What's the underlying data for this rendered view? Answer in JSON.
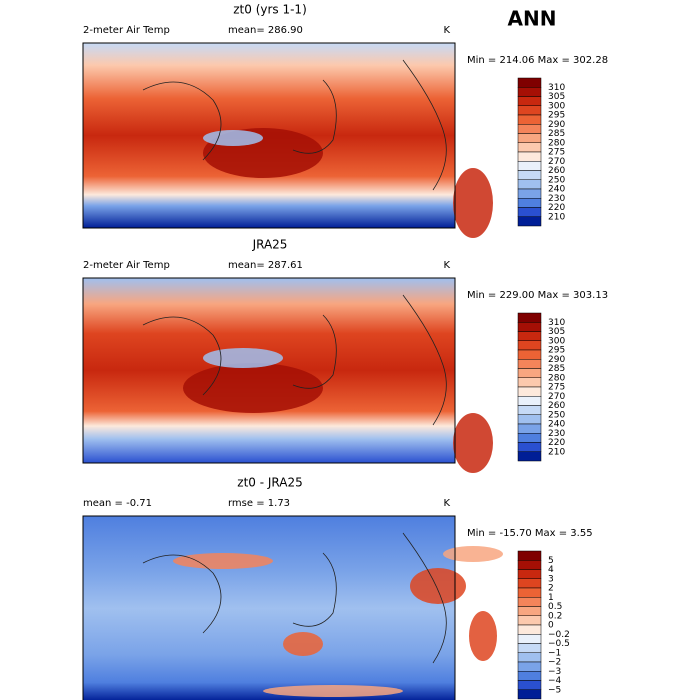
{
  "header": {
    "title": "ANN"
  },
  "panels": [
    {
      "title": "zt0 (yrs 1-1)",
      "variable": "2-meter Air Temp",
      "stat": "mean= 286.90",
      "units": "K",
      "range": "Min = 214.06 Max = 302.28",
      "colorbar": {
        "labels": [
          "310",
          "305",
          "300",
          "295",
          "290",
          "285",
          "280",
          "275",
          "270",
          "260",
          "250",
          "240",
          "230",
          "220",
          "210"
        ]
      }
    },
    {
      "title": "JRA25",
      "variable": "2-meter Air Temp",
      "stat": "mean= 287.61",
      "units": "K",
      "range": "Min = 229.00 Max = 303.13",
      "colorbar": {
        "labels": [
          "310",
          "305",
          "300",
          "295",
          "290",
          "285",
          "280",
          "275",
          "270",
          "260",
          "250",
          "240",
          "230",
          "220",
          "210"
        ]
      }
    },
    {
      "title": "zt0 - JRA25",
      "variable": "mean =  -0.71",
      "stat": "rmse =   1.73",
      "units": "K",
      "range": "Min = -15.70 Max =   3.55",
      "colorbar": {
        "labels": [
          "5",
          "4",
          "3",
          "2",
          "1",
          "0.5",
          "0.2",
          "0",
          "−0.2",
          "−0.5",
          "−1",
          "−2",
          "−3",
          "−4",
          "−5"
        ]
      }
    }
  ],
  "colors": [
    "#7f0000",
    "#a50f05",
    "#c8280f",
    "#de4520",
    "#ec6335",
    "#f4845a",
    "#f8a680",
    "#fcc9ad",
    "#fde9dc",
    "#eaf1fb",
    "#c6daf6",
    "#a0c0ef",
    "#7aa3e8",
    "#4f7fdf",
    "#2a50d0",
    "#001e96"
  ]
}
